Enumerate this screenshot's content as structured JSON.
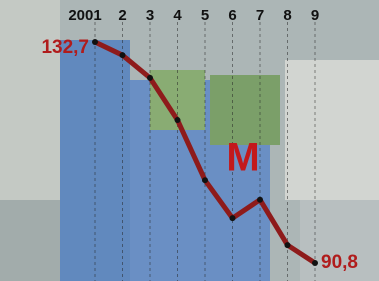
{
  "chart_data": {
    "type": "line",
    "annotation": "M",
    "categories": [
      "2001",
      "2",
      "3",
      "4",
      "5",
      "6",
      "7",
      "8",
      "9"
    ],
    "values": [
      132.7,
      130.2,
      125.9,
      117.9,
      106.5,
      99.3,
      102.8,
      94.2,
      90.8
    ],
    "value_labels": [
      "132,7",
      null,
      null,
      null,
      null,
      null,
      null,
      null,
      "90,8"
    ],
    "color": "#8e1b1b"
  }
}
